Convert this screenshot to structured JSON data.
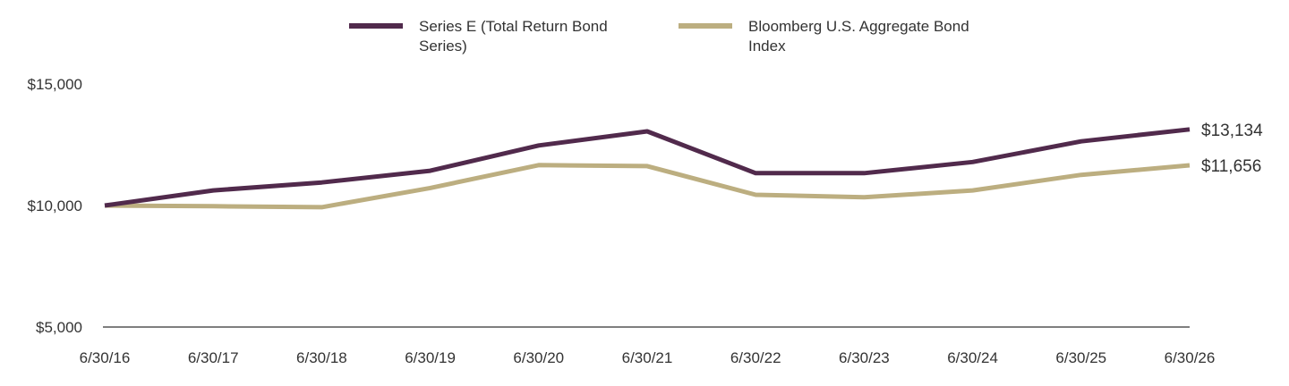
{
  "chart_data": {
    "type": "line",
    "title": "",
    "xlabel": "",
    "ylabel": "",
    "categories": [
      "6/30/16",
      "6/30/17",
      "6/30/18",
      "6/30/19",
      "6/30/20",
      "6/30/21",
      "6/30/22",
      "6/30/23",
      "6/30/24",
      "6/30/25",
      "6/30/26"
    ],
    "ylim": [
      5000,
      15000
    ],
    "y_ticks": [
      5000,
      10000,
      15000
    ],
    "y_tick_labels": [
      "$5,000",
      "$10,000",
      "$15,000"
    ],
    "grid": false,
    "legend_position": "top-center",
    "series": [
      {
        "name_lines": [
          "Series E (Total Return Bond",
          "Series)"
        ],
        "color": "#512a4c",
        "values": [
          10000,
          10620,
          10950,
          11430,
          12470,
          13050,
          11330,
          11330,
          11790,
          12640,
          13134
        ],
        "end_label": "$13,134"
      },
      {
        "name_lines": [
          "Bloomberg U.S. Aggregate Bond",
          "Index"
        ],
        "color": "#bcae80",
        "values": [
          10000,
          9970,
          9930,
          10720,
          11660,
          11620,
          10440,
          10340,
          10620,
          11260,
          11656
        ],
        "end_label": "$11,656"
      }
    ]
  }
}
